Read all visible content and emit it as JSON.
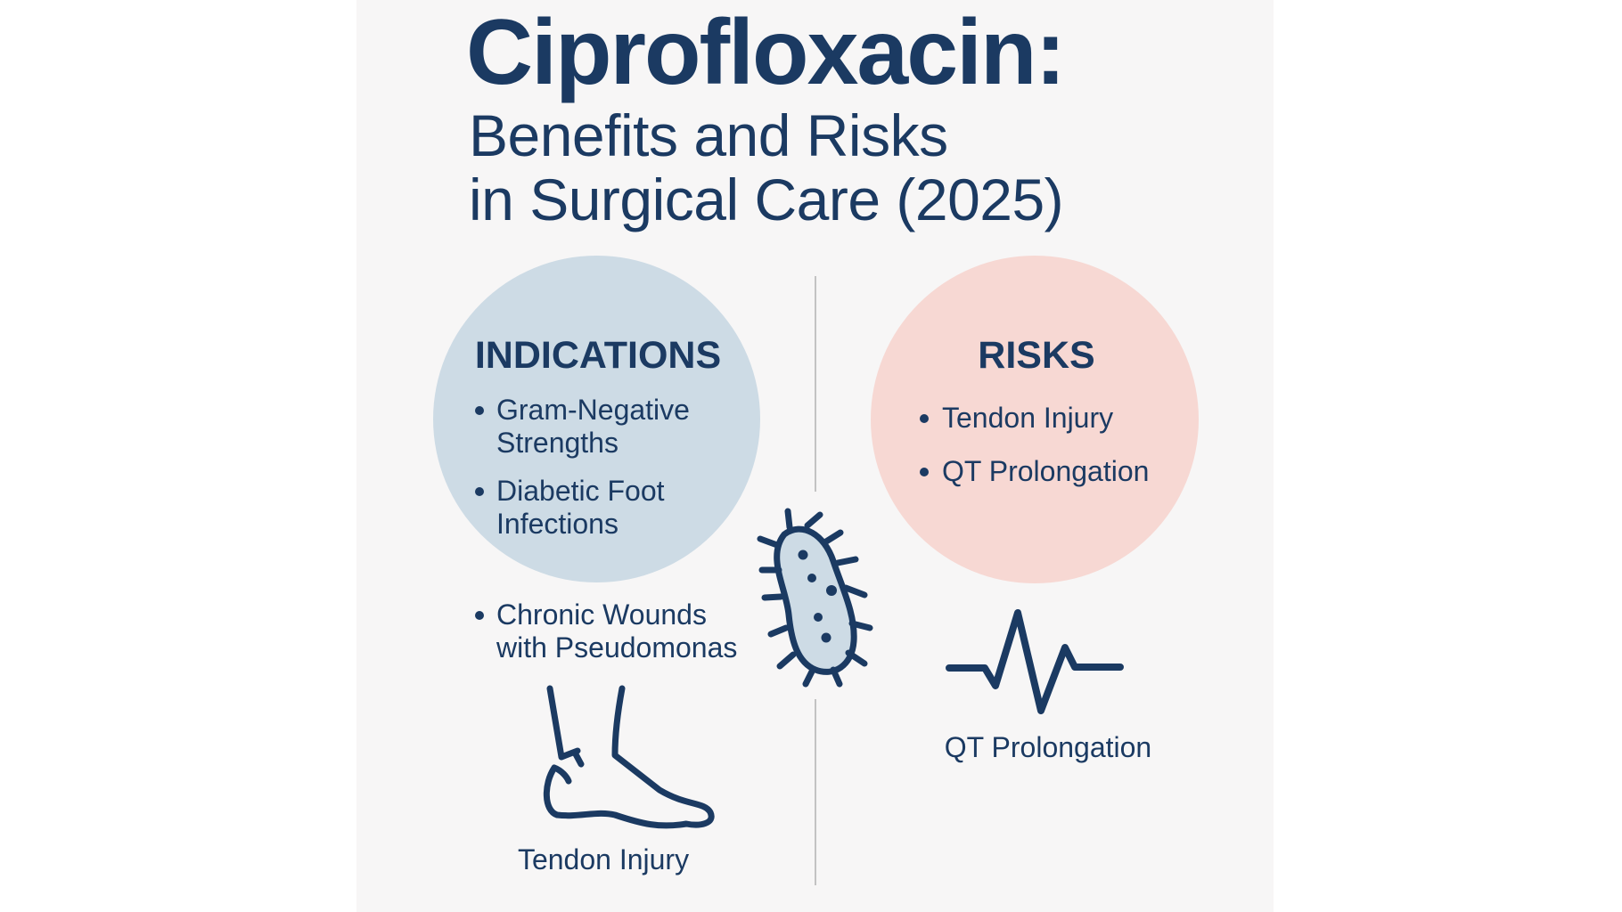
{
  "title": {
    "main": "Ciprofloxacin:",
    "line2": "Benefits and Risks",
    "line3": "in Surgical Care (2025)"
  },
  "indications": {
    "heading": "INDICATIONS",
    "items": [
      {
        "line1": "Gram-Negative",
        "line2": "Strengths"
      },
      {
        "line1": "Diabetic Foot",
        "line2": "Infections"
      },
      {
        "line1": "Chronic Wounds",
        "line2": "with Pseudomonas"
      }
    ]
  },
  "risks": {
    "heading": "RISKS",
    "items": [
      "Tendon Injury",
      "QT Prolongation"
    ]
  },
  "icons": {
    "bacterium": "bacterium-icon",
    "heartbeat": "ecg-heartbeat-icon",
    "foot": "foot-tendon-icon"
  },
  "captions": {
    "heartbeat": "QT Prolongation",
    "foot": "Tendon Injury"
  },
  "colors": {
    "text": "#1b3a62",
    "indications_circle": "#cddbe5",
    "risks_circle": "#f7d8d3",
    "background": "#f7f6f6"
  }
}
